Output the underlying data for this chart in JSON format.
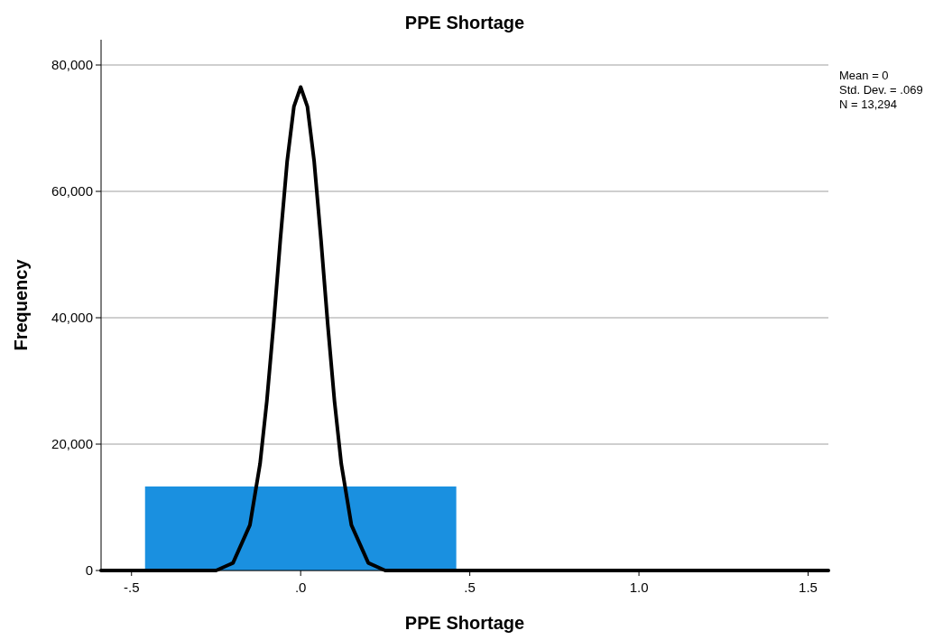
{
  "chart_data": {
    "type": "histogram",
    "title": "PPE Shortage",
    "xlabel": "PPE Shortage",
    "ylabel": "Frequency",
    "bins": [
      -0.46,
      0.46
    ],
    "values": [
      13300
    ],
    "color": "#1a90e0",
    "series": [
      {
        "type": "line",
        "color": "#000000",
        "x": [
          -0.59,
          -0.3,
          -0.25,
          -0.2,
          -0.15,
          -0.12,
          -0.1,
          -0.08,
          -0.06,
          -0.04,
          -0.02,
          0,
          0.02,
          0.04,
          0.06,
          0.08,
          0.1,
          0.12,
          0.15,
          0.2,
          0.25,
          0.3,
          1.56
        ],
        "values": [
          0,
          0,
          0,
          1200,
          7200,
          16900,
          26800,
          39000,
          52400,
          64700,
          73400,
          76500,
          73400,
          64700,
          52400,
          39000,
          26800,
          16900,
          7200,
          1200,
          0,
          0,
          0
        ]
      }
    ],
    "xlim": [
      -0.59,
      1.56
    ],
    "xticks": [
      {
        "value": -0.5,
        "label": "-.5"
      },
      {
        "value": 0,
        "label": ".0"
      },
      {
        "value": 0.5,
        "label": ".5"
      },
      {
        "value": 1,
        "label": "1.0"
      },
      {
        "value": 1.5,
        "label": "1.5"
      }
    ],
    "ylim": [
      0,
      84000
    ],
    "yticks": [
      {
        "value": 0,
        "label": "0"
      },
      {
        "value": 20000,
        "label": "20,000"
      },
      {
        "value": 40000,
        "label": "40,000"
      },
      {
        "value": 60000,
        "label": "60,000"
      },
      {
        "value": 80000,
        "label": "80,000"
      }
    ],
    "grid": "y",
    "annotations": [
      "Mean = 0",
      "Std. Dev. = .069",
      "N = 13,294"
    ]
  }
}
